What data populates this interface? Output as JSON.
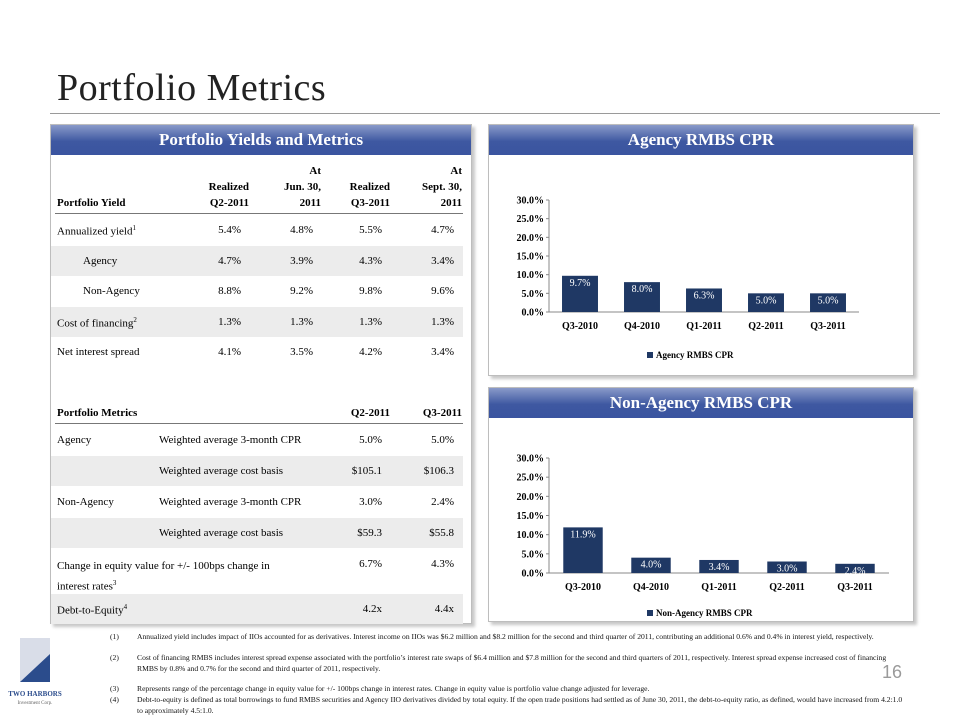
{
  "page": {
    "title": "Portfolio Metrics",
    "page_number": "16",
    "logo_text": "TWO HARBORS",
    "logo_sub": "Investment Corp."
  },
  "left_panel": {
    "header": "Portfolio Yields and Metrics",
    "yield_table": {
      "col_headers": [
        [
          "",
          "Portfolio Yield"
        ],
        [
          "Realized",
          "Q2-2011"
        ],
        [
          "At",
          "Jun. 30,",
          "2011"
        ],
        [
          "Realized",
          "Q3-2011"
        ],
        [
          "At",
          "Sept. 30,",
          "2011"
        ]
      ],
      "rows": [
        {
          "label": "Annualized yield",
          "sup": "1",
          "indent": false,
          "values": [
            "5.4%",
            "4.8%",
            "5.5%",
            "4.7%"
          ]
        },
        {
          "label": "Agency",
          "sup": "",
          "indent": true,
          "values": [
            "4.7%",
            "3.9%",
            "4.3%",
            "3.4%"
          ]
        },
        {
          "label": "Non-Agency",
          "sup": "",
          "indent": true,
          "values": [
            "8.8%",
            "9.2%",
            "9.8%",
            "9.6%"
          ]
        },
        {
          "label": "Cost of financing",
          "sup": "2",
          "indent": false,
          "values": [
            "1.3%",
            "1.3%",
            "1.3%",
            "1.3%"
          ]
        },
        {
          "label": "Net interest spread",
          "sup": "",
          "indent": false,
          "values": [
            "4.1%",
            "3.5%",
            "4.2%",
            "3.4%"
          ]
        }
      ]
    },
    "metrics_table": {
      "title": "Portfolio Metrics",
      "col_headers": [
        "Q2-2011",
        "Q3-2011"
      ],
      "rows": [
        {
          "label": "Agency",
          "desc": "Weighted average  3-month CPR",
          "values": [
            "5.0%",
            "5.0%"
          ]
        },
        {
          "label": "",
          "desc": "Weighted average  cost basis",
          "values": [
            "$105.1",
            "$106.3"
          ]
        },
        {
          "label": "Non-Agency",
          "desc": "Weighted average  3-month CPR",
          "values": [
            "3.0%",
            "2.4%"
          ]
        },
        {
          "label": "",
          "desc": "Weighted average  cost basis",
          "values": [
            "$59.3",
            "$55.8"
          ]
        },
        {
          "label": "Change in equity value for +/- 100bps change in",
          "label2": "interest rates",
          "sup": "3",
          "desc": "",
          "values": [
            "6.7%",
            "4.3%"
          ]
        },
        {
          "label": "Debt-to-Equity",
          "sup": "4",
          "desc": "",
          "values": [
            "4.2x",
            "4.4x"
          ]
        }
      ]
    }
  },
  "cpr_panel": {
    "header": "Agency RMBS CPR"
  },
  "nacpr_panel": {
    "header": "Non-Agency RMBS CPR"
  },
  "chart_data": [
    {
      "type": "bar",
      "categories": [
        "Q3-2010",
        "Q4-2010",
        "Q1-2011",
        "Q2-2011",
        "Q3-2011"
      ],
      "series": [
        {
          "name": "Agency RMBS CPR",
          "values": [
            9.7,
            8.0,
            6.3,
            5.0,
            5.0
          ]
        }
      ],
      "value_labels": [
        "9.7%",
        "8.0%",
        "6.3%",
        "5.0%",
        "5.0%"
      ],
      "yticks": [
        "0.0%",
        "5.0%",
        "10.0%",
        "15.0%",
        "20.0%",
        "25.0%",
        "30.0%"
      ],
      "ylim": [
        0,
        30
      ],
      "legend": "bottom",
      "bar_color": "#1f3864"
    },
    {
      "type": "bar",
      "categories": [
        "Q3-2010",
        "Q4-2010",
        "Q1-2011",
        "Q2-2011",
        "Q3-2011"
      ],
      "series": [
        {
          "name": "Non-Agency RMBS CPR",
          "values": [
            11.9,
            4.0,
            3.4,
            3.0,
            2.4
          ]
        }
      ],
      "value_labels": [
        "11.9%",
        "4.0%",
        "3.4%",
        "3.0%",
        "2.4%"
      ],
      "yticks": [
        "0.0%",
        "5.0%",
        "10.0%",
        "15.0%",
        "20.0%",
        "25.0%",
        "30.0%"
      ],
      "ylim": [
        0,
        30
      ],
      "legend": "bottom",
      "bar_color": "#1f3864"
    }
  ],
  "footnotes": [
    {
      "n": "(1)",
      "text": "Annualized yield includes impact of IIOs accounted for as derivatives.  Interest income on IIOs was $6.2 million and $8.2 million for the second and third quarter of 2011, contributing an additional 0.6% and 0.4% in interest yield, respectively."
    },
    {
      "n": "(2)",
      "text": "Cost of financing RMBS includes interest spread expense associated with the portfolio’s interest rate swaps of $6.4 million and $7.8 million for the second and third quarters of 2011, respectively.  Interest spread expense increased cost of financing RMBS by 0.8% and 0.7% for the second and third quarter of 2011, respectively."
    },
    {
      "n": "(3)",
      "text": "Represents range of the percentage change in equity value for +/- 100bps change in interest rates. Change in equity value is portfolio value change adjusted for leverage."
    },
    {
      "n": "(4)",
      "text": "Debt-to-equity is defined as total borrowings to fund RMBS securities and Agency IIO derivatives divided by total equity. If the open trade positions had settled as of June 30, 2011, the debt-to-equity ratio, as defined, would have increased from 4.2:1.0 to approximately 4.5:1.0."
    }
  ]
}
